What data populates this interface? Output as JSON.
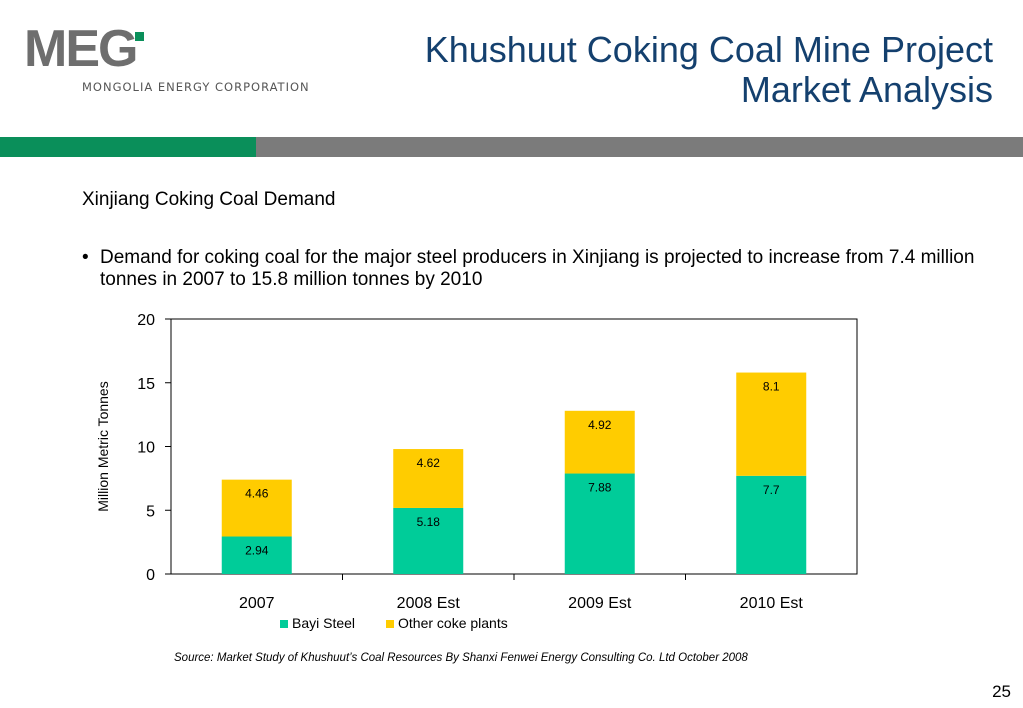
{
  "header": {
    "logo_text": "MEG",
    "logo_subtitle": "MONGOLIA ENERGY CORPORATION",
    "title_line1": "Khushuut Coking Coal Mine Project",
    "title_line2": "Market Analysis",
    "brand_colors": {
      "green": "#0a8f5a",
      "gray": "#7b7b7b",
      "title": "#14406e"
    }
  },
  "content": {
    "subheading": "Xinjiang Coking Coal Demand",
    "bullet": "Demand for coking coal for the major steel producers in Xinjiang is projected to increase from 7.4 million tonnes in 2007 to 15.8 million tonnes by 2010"
  },
  "chart_data": {
    "type": "bar",
    "stacked": true,
    "categories": [
      "2007",
      "2008 Est",
      "2009 Est",
      "2010 Est"
    ],
    "series": [
      {
        "name": "Bayi Steel",
        "values": [
          2.94,
          5.18,
          7.88,
          7.7
        ],
        "labels": [
          "2.94",
          "5.18",
          "7.88",
          "7.7"
        ],
        "color": "#00cc99"
      },
      {
        "name": "Other coke plants",
        "values": [
          4.46,
          4.62,
          4.92,
          8.1
        ],
        "labels": [
          "4.46",
          "4.62",
          "4.92",
          "8.1"
        ],
        "color": "#ffcc00"
      }
    ],
    "title": "",
    "xlabel": "",
    "ylabel": "Million Metric Tonnes",
    "ylim": [
      0,
      20
    ],
    "yticks": [
      "0",
      "5",
      "10",
      "15",
      "20"
    ],
    "grid": false,
    "legend_position": "bottom"
  },
  "footer": {
    "source": "Source: Market Study of Khushuut’s Coal Resources By Shanxi Fenwei Energy Consulting Co. Ltd October 2008",
    "page_number": "25"
  }
}
